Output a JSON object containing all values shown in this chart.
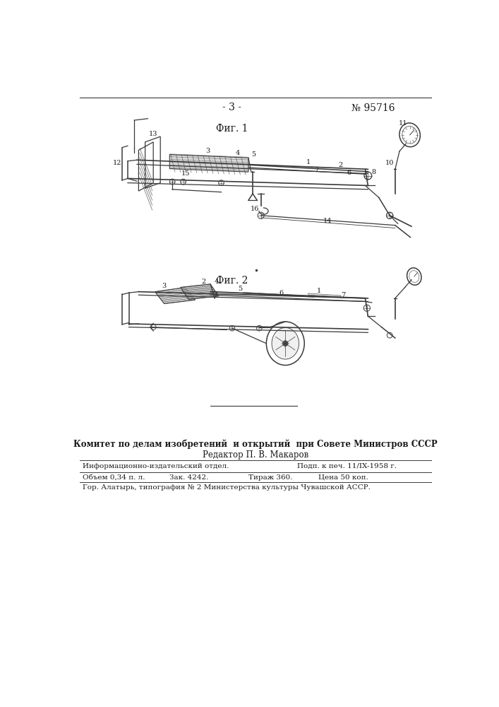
{
  "page_number": "- 3 -",
  "patent_number": "№ 95716",
  "fig1_label": "Фиг. 1",
  "fig2_label": "Фиг. 2",
  "committee_text": "Комитет по делам изобретений  и открытий  при Совете Министров СССР",
  "editor_text": "Редактор П. В. Макаров",
  "row1_col1": "Информационно-издательский отдел.",
  "row1_col2": "Подп. к печ. 11/IX-1958 г.",
  "row2_col1": "Объем 0,34 п. л.",
  "row2_col2": "Зак. 4242.",
  "row2_col3": "Тираж 360.",
  "row2_col4": "Цена 50 коп.",
  "footer_text": "Гор. Алатырь, типография № 2 Министерства культуры Чувашской АССР.",
  "bg_color": "#ffffff",
  "text_color": "#1a1a1a",
  "line_color": "#3a3a3a"
}
